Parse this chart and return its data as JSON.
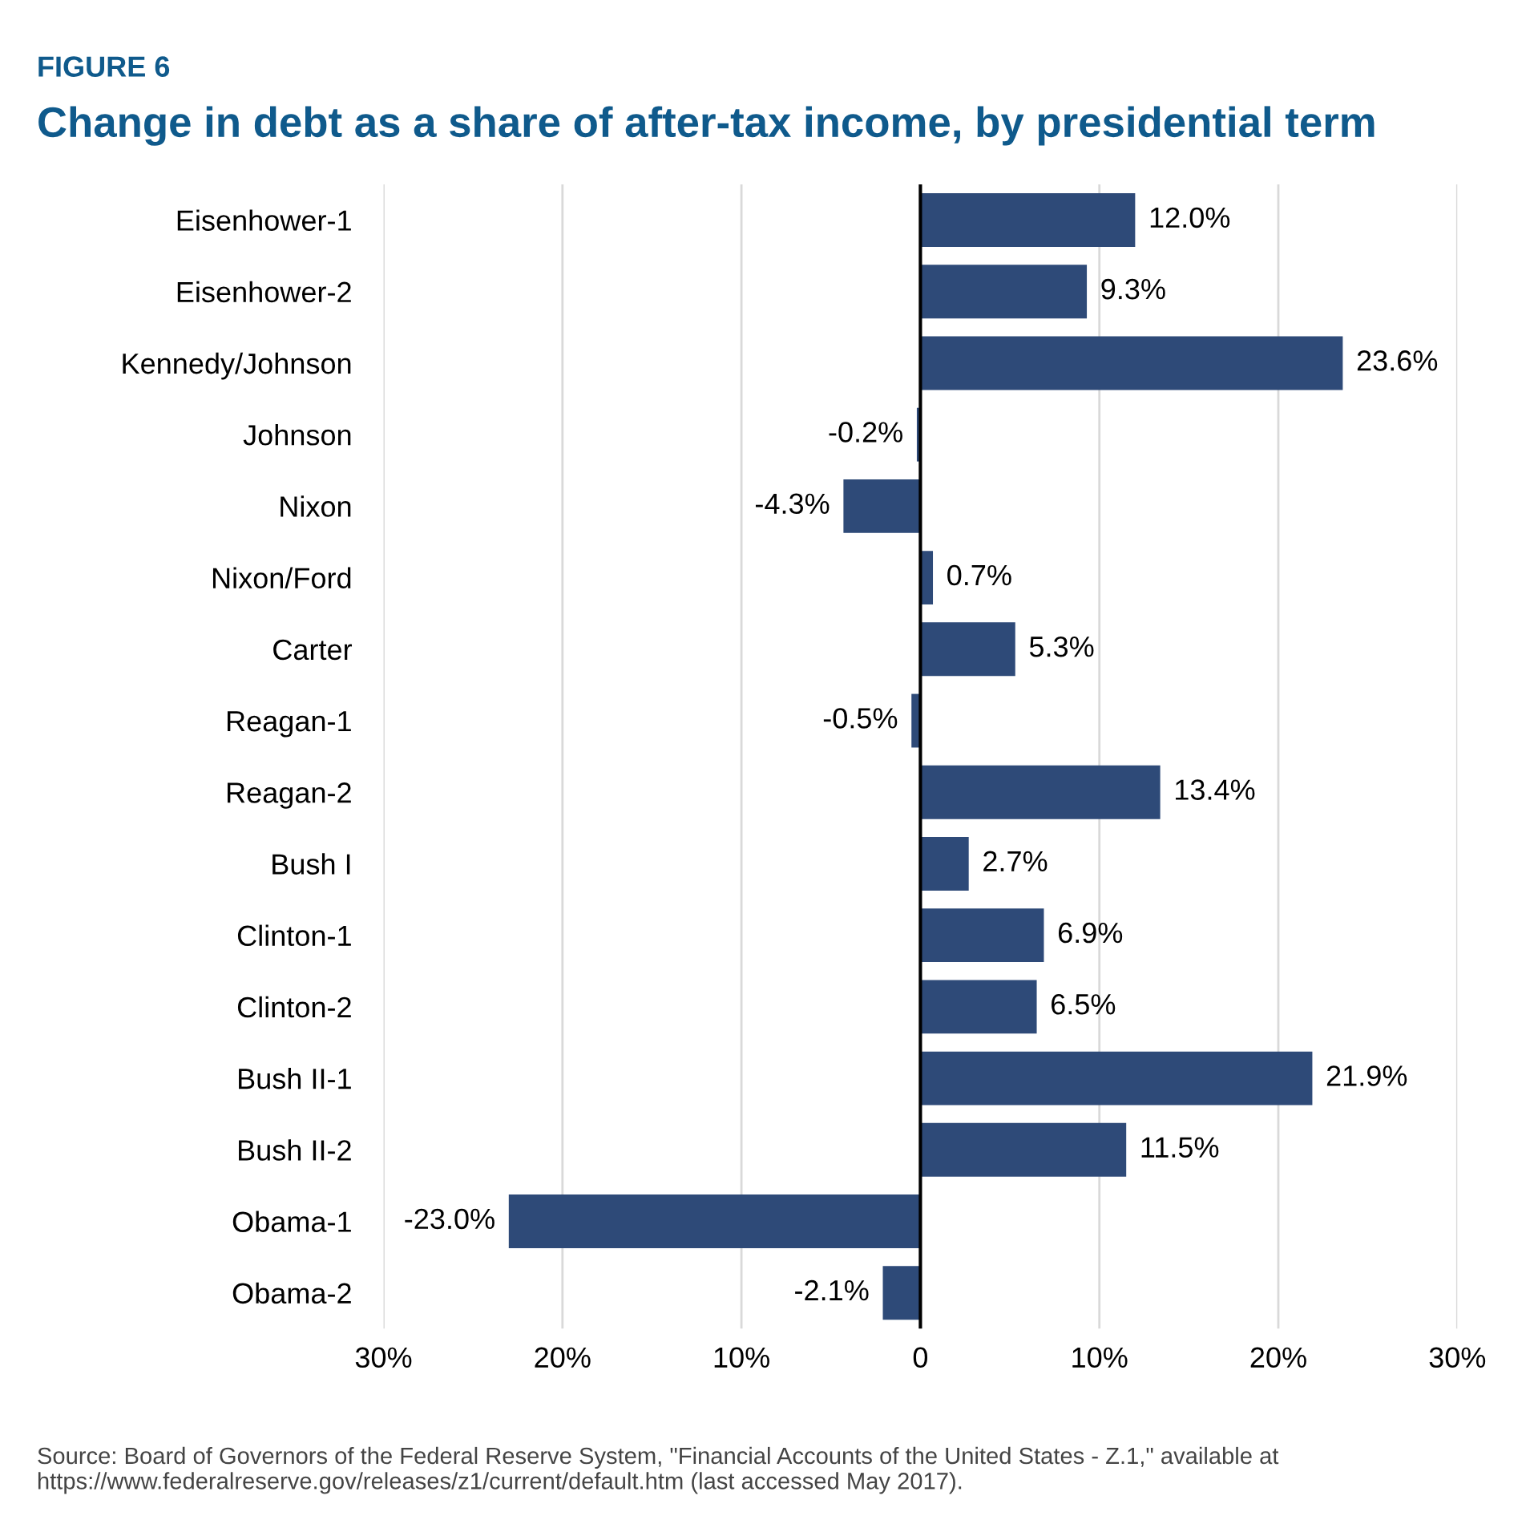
{
  "chart_data": {
    "type": "bar",
    "orientation": "horizontal",
    "subtitle": "FIGURE 6",
    "title": "Change in debt as a share of after-tax income, by presidential term",
    "categories": [
      "Eisenhower-1",
      "Eisenhower-2",
      "Kennedy/Johnson",
      "Johnson",
      "Nixon",
      "Nixon/Ford",
      "Carter",
      "Reagan-1",
      "Reagan-2",
      "Bush I",
      "Clinton-1",
      "Clinton-2",
      "Bush II-1",
      "Bush II-2",
      "Obama-1",
      "Obama-2"
    ],
    "values": [
      12.0,
      9.3,
      23.6,
      -0.2,
      -4.3,
      0.7,
      5.3,
      -0.5,
      13.4,
      2.7,
      6.9,
      6.5,
      21.9,
      11.5,
      -23.0,
      -2.1
    ],
    "value_labels": [
      "12.0%",
      "9.3%",
      "23.6%",
      "-0.2%",
      "-4.3%",
      "0.7%",
      "5.3%",
      "-0.5%",
      "13.4%",
      "2.7%",
      "6.9%",
      "6.5%",
      "21.9%",
      "11.5%",
      "-23.0%",
      "-2.1%"
    ],
    "color": "#2e4a78",
    "xlim": [
      -30,
      30
    ],
    "xticks": [
      {
        "value": -30,
        "label": "30%"
      },
      {
        "value": -20,
        "label": "20%"
      },
      {
        "value": -10,
        "label": "10%"
      },
      0,
      {
        "value": 10,
        "label": "10%"
      },
      {
        "value": 20,
        "label": "20%"
      },
      {
        "value": 30,
        "label": "30%"
      }
    ],
    "grid": "x",
    "ref_lines": [
      {
        "axis": "x",
        "value": 0,
        "color": "#000000"
      }
    ],
    "annotations": [
      "Source: Board of Governors of the Federal Reserve System, \"Financial Accounts of the United States - Z.1,\" available at https://www.federalreserve.gov/releases/z1/current/default.htm (last accessed May 2017)."
    ]
  }
}
